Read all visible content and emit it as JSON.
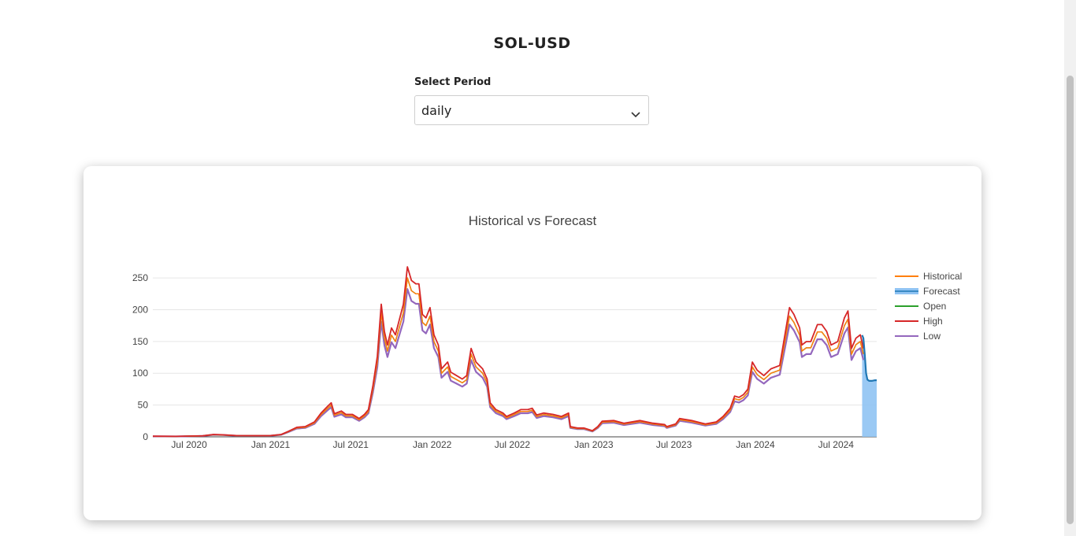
{
  "page": {
    "title": "SOL-USD",
    "period_label": "Select Period",
    "period_value": "daily"
  },
  "colors": {
    "historical": "#ff7f0e",
    "forecast": "#1f77b4",
    "forecast_fill": "#8fc3f3",
    "open": "#2ca02c",
    "high": "#d62728",
    "low": "#9467bd"
  },
  "chart_data": {
    "type": "line",
    "title": "Historical vs Forecast",
    "xlabel": "",
    "ylabel": "",
    "x_ticks": [
      "Jul 2020",
      "Jan 2021",
      "Jul 2021",
      "Jan 2022",
      "Jul 2022",
      "Jan 2023",
      "Jul 2023",
      "Jan 2024",
      "Jul 2024"
    ],
    "y_ticks": [
      0,
      50,
      100,
      150,
      200,
      250
    ],
    "xlim": [
      "2020-04-10",
      "2024-10-01"
    ],
    "ylim": [
      0,
      265
    ],
    "legend_position": "right",
    "legend": [
      "Historical",
      "Forecast",
      "Open",
      "High",
      "Low"
    ],
    "historical_points": [
      [
        "2020-04-10",
        0.9
      ],
      [
        "2020-06-01",
        0.7
      ],
      [
        "2020-08-01",
        1.5
      ],
      [
        "2020-08-25",
        3.5
      ],
      [
        "2020-09-15",
        3.0
      ],
      [
        "2020-10-15",
        1.8
      ],
      [
        "2020-12-01",
        1.7
      ],
      [
        "2021-01-01",
        1.8
      ],
      [
        "2021-01-25",
        3.5
      ],
      [
        "2021-02-10",
        8
      ],
      [
        "2021-03-01",
        14
      ],
      [
        "2021-03-20",
        15
      ],
      [
        "2021-04-10",
        22
      ],
      [
        "2021-04-25",
        35
      ],
      [
        "2021-05-10",
        45
      ],
      [
        "2021-05-18",
        50
      ],
      [
        "2021-05-25",
        34
      ],
      [
        "2021-06-10",
        38
      ],
      [
        "2021-06-20",
        33
      ],
      [
        "2021-07-05",
        33
      ],
      [
        "2021-07-20",
        27
      ],
      [
        "2021-08-01",
        33
      ],
      [
        "2021-08-10",
        40
      ],
      [
        "2021-08-20",
        75
      ],
      [
        "2021-08-30",
        118
      ],
      [
        "2021-09-08",
        195
      ],
      [
        "2021-09-15",
        155
      ],
      [
        "2021-09-22",
        135
      ],
      [
        "2021-10-01",
        160
      ],
      [
        "2021-10-10",
        150
      ],
      [
        "2021-10-20",
        175
      ],
      [
        "2021-10-28",
        195
      ],
      [
        "2021-11-06",
        250
      ],
      [
        "2021-11-15",
        230
      ],
      [
        "2021-11-25",
        225
      ],
      [
        "2021-12-02",
        225
      ],
      [
        "2021-12-10",
        180
      ],
      [
        "2021-12-18",
        175
      ],
      [
        "2021-12-27",
        190
      ],
      [
        "2022-01-05",
        150
      ],
      [
        "2022-01-15",
        135
      ],
      [
        "2022-01-22",
        100
      ],
      [
        "2022-02-05",
        110
      ],
      [
        "2022-02-12",
        95
      ],
      [
        "2022-02-25",
        90
      ],
      [
        "2022-03-10",
        85
      ],
      [
        "2022-03-20",
        90
      ],
      [
        "2022-03-30",
        130
      ],
      [
        "2022-04-10",
        110
      ],
      [
        "2022-04-25",
        100
      ],
      [
        "2022-05-05",
        85
      ],
      [
        "2022-05-12",
        50
      ],
      [
        "2022-05-25",
        40
      ],
      [
        "2022-06-10",
        35
      ],
      [
        "2022-06-18",
        30
      ],
      [
        "2022-07-05",
        35
      ],
      [
        "2022-07-20",
        40
      ],
      [
        "2022-08-05",
        40
      ],
      [
        "2022-08-15",
        42
      ],
      [
        "2022-08-25",
        32
      ],
      [
        "2022-09-10",
        35
      ],
      [
        "2022-10-01",
        33
      ],
      [
        "2022-10-20",
        30
      ],
      [
        "2022-11-05",
        35
      ],
      [
        "2022-11-09",
        15
      ],
      [
        "2022-11-25",
        13
      ],
      [
        "2022-12-10",
        13
      ],
      [
        "2022-12-29",
        9
      ],
      [
        "2023-01-10",
        15
      ],
      [
        "2023-01-20",
        23
      ],
      [
        "2023-02-15",
        24
      ],
      [
        "2023-03-10",
        20
      ],
      [
        "2023-04-15",
        24
      ],
      [
        "2023-05-15",
        20
      ],
      [
        "2023-06-10",
        18
      ],
      [
        "2023-06-15",
        15
      ],
      [
        "2023-07-05",
        19
      ],
      [
        "2023-07-14",
        27
      ],
      [
        "2023-08-10",
        24
      ],
      [
        "2023-09-10",
        19
      ],
      [
        "2023-10-05",
        22
      ],
      [
        "2023-10-20",
        30
      ],
      [
        "2023-11-05",
        42
      ],
      [
        "2023-11-15",
        60
      ],
      [
        "2023-11-25",
        58
      ],
      [
        "2023-12-05",
        62
      ],
      [
        "2023-12-15",
        70
      ],
      [
        "2023-12-25",
        110
      ],
      [
        "2024-01-05",
        98
      ],
      [
        "2024-01-20",
        90
      ],
      [
        "2024-02-05",
        100
      ],
      [
        "2024-02-25",
        105
      ],
      [
        "2024-03-05",
        140
      ],
      [
        "2024-03-18",
        190
      ],
      [
        "2024-03-28",
        180
      ],
      [
        "2024-04-10",
        160
      ],
      [
        "2024-04-15",
        135
      ],
      [
        "2024-04-25",
        140
      ],
      [
        "2024-05-05",
        140
      ],
      [
        "2024-05-20",
        165
      ],
      [
        "2024-05-30",
        165
      ],
      [
        "2024-06-10",
        155
      ],
      [
        "2024-06-20",
        135
      ],
      [
        "2024-07-05",
        140
      ],
      [
        "2024-07-20",
        175
      ],
      [
        "2024-07-28",
        185
      ],
      [
        "2024-08-05",
        130
      ],
      [
        "2024-08-15",
        145
      ],
      [
        "2024-08-25",
        150
      ],
      [
        "2024-09-01",
        130
      ]
    ],
    "forecast_points": [
      [
        "2024-08-29",
        160
      ],
      [
        "2024-09-01",
        155
      ],
      [
        "2024-09-04",
        130
      ],
      [
        "2024-09-07",
        100
      ],
      [
        "2024-09-10",
        90
      ],
      [
        "2024-09-14",
        88
      ],
      [
        "2024-09-20",
        88
      ],
      [
        "2024-09-27",
        89
      ],
      [
        "2024-10-01",
        89
      ]
    ],
    "forecast_band": {
      "x0": "2024-08-29",
      "x1": "2024-10-01",
      "y0": 0
    }
  }
}
